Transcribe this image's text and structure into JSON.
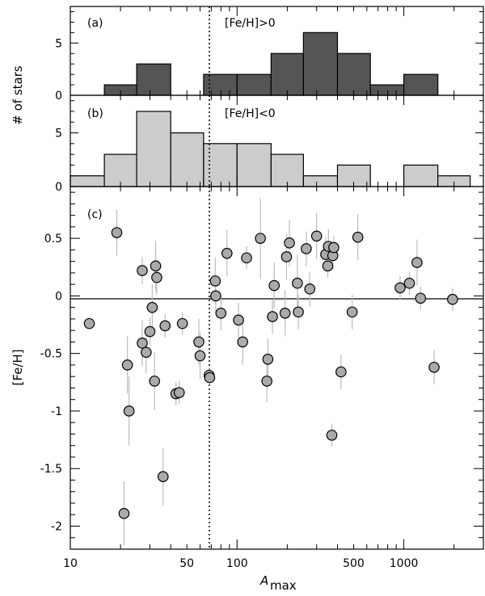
{
  "colors": {
    "hist_a_fill": "#555555",
    "hist_b_fill": "#cccccc",
    "point_fill": "#aaaaaa",
    "errorbar": "#bbbbbb",
    "line": "#000000"
  },
  "chart_data": [
    {
      "type": "bar",
      "panel": "a",
      "panel_label": "(a)",
      "annotation": "[Fe/H]>0",
      "x_scale": "log",
      "ylabel": "# of stars",
      "ylim": [
        0,
        8.5
      ],
      "yticks": [
        0,
        5
      ],
      "bins": [
        {
          "x0": 16,
          "x1": 25,
          "count": 1
        },
        {
          "x0": 25,
          "x1": 40,
          "count": 3
        },
        {
          "x0": 63,
          "x1": 100,
          "count": 2
        },
        {
          "x0": 100,
          "x1": 160,
          "count": 2
        },
        {
          "x0": 160,
          "x1": 250,
          "count": 4
        },
        {
          "x0": 250,
          "x1": 400,
          "count": 6
        },
        {
          "x0": 400,
          "x1": 630,
          "count": 4
        },
        {
          "x0": 630,
          "x1": 1000,
          "count": 1
        },
        {
          "x0": 1000,
          "x1": 1600,
          "count": 2
        }
      ]
    },
    {
      "type": "bar",
      "panel": "b",
      "panel_label": "(b)",
      "annotation": "[Fe/H]<0",
      "x_scale": "log",
      "ylim": [
        0,
        8.5
      ],
      "yticks": [
        0,
        5
      ],
      "bins": [
        {
          "x0": 10,
          "x1": 16,
          "count": 1
        },
        {
          "x0": 16,
          "x1": 25,
          "count": 3
        },
        {
          "x0": 25,
          "x1": 40,
          "count": 7
        },
        {
          "x0": 40,
          "x1": 63,
          "count": 5
        },
        {
          "x0": 63,
          "x1": 100,
          "count": 4
        },
        {
          "x0": 100,
          "x1": 160,
          "count": 4
        },
        {
          "x0": 160,
          "x1": 250,
          "count": 3
        },
        {
          "x0": 250,
          "x1": 400,
          "count": 1
        },
        {
          "x0": 400,
          "x1": 630,
          "count": 2
        },
        {
          "x0": 1000,
          "x1": 1600,
          "count": 2
        },
        {
          "x0": 1600,
          "x1": 2500,
          "count": 1
        }
      ]
    },
    {
      "type": "scatter",
      "panel": "c",
      "panel_label": "(c)",
      "x_scale": "log",
      "xlim": [
        10,
        3000
      ],
      "ylim": [
        -2.2,
        0.95
      ],
      "xlabel": "A",
      "xlabel_sub": "max",
      "ylabel": "[Fe/H]",
      "xticks": [
        10,
        50,
        100,
        500,
        1000
      ],
      "xtick_labels": [
        "10",
        "50",
        "100",
        "500",
        "1000"
      ],
      "yticks": [
        0.5,
        0,
        -0.5,
        -1,
        -1.5,
        -2
      ],
      "ytick_labels": [
        "0.5",
        "0",
        "-0.5",
        "-1",
        "-1.5",
        "-2"
      ],
      "reference_line_y": 0,
      "vertical_dotted_x": 70,
      "points": [
        {
          "x": 13,
          "y": -0.24,
          "err": 0
        },
        {
          "x": 19,
          "y": 0.55,
          "err": 0.2
        },
        {
          "x": 21,
          "y": -1.89,
          "err": 0.28
        },
        {
          "x": 22,
          "y": -0.6,
          "err": 0.25
        },
        {
          "x": 22.5,
          "y": -1.0,
          "err": 0.3
        },
        {
          "x": 27,
          "y": 0.22,
          "err": 0.12
        },
        {
          "x": 27,
          "y": -0.41,
          "err": 0.2
        },
        {
          "x": 28.5,
          "y": -0.49,
          "err": 0.18
        },
        {
          "x": 30,
          "y": -0.31,
          "err": 0.12
        },
        {
          "x": 31,
          "y": -0.1,
          "err": 0.2
        },
        {
          "x": 32,
          "y": -0.74,
          "err": 0.25
        },
        {
          "x": 32.5,
          "y": 0.26,
          "err": 0.22
        },
        {
          "x": 33,
          "y": 0.16,
          "err": 0.15
        },
        {
          "x": 36,
          "y": -1.57,
          "err": 0.25
        },
        {
          "x": 37,
          "y": -0.26,
          "err": 0.1
        },
        {
          "x": 43,
          "y": -0.85,
          "err": 0.1
        },
        {
          "x": 45,
          "y": -0.84,
          "err": 0.1
        },
        {
          "x": 47,
          "y": -0.24,
          "err": 0.1
        },
        {
          "x": 59,
          "y": -0.4,
          "err": 0.2
        },
        {
          "x": 60,
          "y": -0.52,
          "err": 0.2
        },
        {
          "x": 68,
          "y": -0.69,
          "err": 0.06
        },
        {
          "x": 68.5,
          "y": -0.71,
          "err": 0.06
        },
        {
          "x": 74,
          "y": 0.13,
          "err": 0.2
        },
        {
          "x": 74.5,
          "y": 0.0,
          "err": 0.15
        },
        {
          "x": 80,
          "y": -0.15,
          "err": 0.15
        },
        {
          "x": 87,
          "y": 0.37,
          "err": 0.2
        },
        {
          "x": 102,
          "y": -0.21,
          "err": 0.15
        },
        {
          "x": 108,
          "y": -0.4,
          "err": 0.2
        },
        {
          "x": 114,
          "y": 0.33,
          "err": 0.1
        },
        {
          "x": 138,
          "y": 0.5,
          "err": 0.35
        },
        {
          "x": 151,
          "y": -0.74,
          "err": 0.18
        },
        {
          "x": 153,
          "y": -0.55,
          "err": 0.18
        },
        {
          "x": 163,
          "y": -0.18,
          "err": 0.15
        },
        {
          "x": 167,
          "y": 0.09,
          "err": 0.2
        },
        {
          "x": 194,
          "y": -0.15,
          "err": 0.2
        },
        {
          "x": 198,
          "y": 0.34,
          "err": 0.2
        },
        {
          "x": 206,
          "y": 0.46,
          "err": 0.2
        },
        {
          "x": 230,
          "y": 0.11,
          "err": 0.25
        },
        {
          "x": 233,
          "y": -0.14,
          "err": 0.15
        },
        {
          "x": 260,
          "y": 0.41,
          "err": 0.15
        },
        {
          "x": 273,
          "y": 0.06,
          "err": 0.15
        },
        {
          "x": 300,
          "y": 0.52,
          "err": 0.2
        },
        {
          "x": 340,
          "y": 0.36,
          "err": 0.15
        },
        {
          "x": 350,
          "y": 0.26,
          "err": 0.1
        },
        {
          "x": 353,
          "y": 0.43,
          "err": 0.15
        },
        {
          "x": 370,
          "y": -1.21,
          "err": 0.1
        },
        {
          "x": 375,
          "y": 0.35,
          "err": 0.12
        },
        {
          "x": 380,
          "y": 0.42,
          "err": 0.1
        },
        {
          "x": 420,
          "y": -0.66,
          "err": 0.15
        },
        {
          "x": 490,
          "y": -0.14,
          "err": 0.15
        },
        {
          "x": 530,
          "y": 0.51,
          "err": 0.2
        },
        {
          "x": 950,
          "y": 0.07,
          "err": 0.1
        },
        {
          "x": 1080,
          "y": 0.11,
          "err": 0.1
        },
        {
          "x": 1200,
          "y": 0.29,
          "err": 0.2
        },
        {
          "x": 1260,
          "y": -0.02,
          "err": 0.1
        },
        {
          "x": 1520,
          "y": -0.62,
          "err": 0.15
        },
        {
          "x": 1960,
          "y": -0.03,
          "err": 0.1
        }
      ]
    }
  ]
}
